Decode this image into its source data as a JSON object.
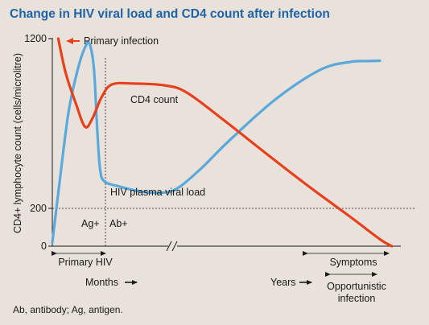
{
  "title": "Change in HIV viral load and CD4 count after infection",
  "footnote": "Ab, antibody; Ag, antigen.",
  "colors": {
    "title": "#1d63a8",
    "cd4": "#e8401c",
    "viral_load": "#5aa8dc",
    "background": "#e8e2da"
  },
  "chart_data": {
    "type": "line",
    "title": "Change in HIV viral load and CD4 count after infection",
    "ylabel": "CD4+ lymphocyte count (cells/microlitre)",
    "y_ticks": [
      "0",
      "200",
      "1200"
    ],
    "ylim": [
      0,
      1200
    ],
    "reference_line_y": 200,
    "x_axis_break": true,
    "x_annotations": {
      "primary_hiv": "Primary HIV",
      "months": "Months",
      "years": "Years",
      "symptoms": "Symptoms",
      "opportunistic_infection": "Opportunistic infection"
    },
    "annotations": {
      "primary_infection": "Primary infection",
      "ag": "Ag+",
      "ab": "Ab+"
    },
    "series": [
      {
        "name": "CD4 count",
        "color": "#e8401c",
        "values": [
          [
            0.04,
            1200
          ],
          [
            0.09,
            1000
          ],
          [
            0.16,
            820
          ],
          [
            0.22,
            690
          ],
          [
            0.27,
            740
          ],
          [
            0.33,
            860
          ],
          [
            0.4,
            935
          ],
          [
            0.55,
            940
          ],
          [
            0.75,
            930
          ],
          [
            0.9,
            890
          ],
          [
            1.15,
            730
          ],
          [
            1.4,
            560
          ],
          [
            1.7,
            360
          ],
          [
            2.0,
            170
          ],
          [
            2.2,
            40
          ],
          [
            2.28,
            0
          ]
        ]
      },
      {
        "name": "HIV plasma viral load",
        "color": "#5aa8dc",
        "values": [
          [
            0.0,
            20
          ],
          [
            0.05,
            380
          ],
          [
            0.11,
            780
          ],
          [
            0.17,
            1020
          ],
          [
            0.22,
            1150
          ],
          [
            0.25,
            1170
          ],
          [
            0.28,
            1020
          ],
          [
            0.3,
            700
          ],
          [
            0.32,
            450
          ],
          [
            0.35,
            375
          ],
          [
            0.45,
            345
          ],
          [
            0.6,
            315
          ],
          [
            0.75,
            310
          ],
          [
            0.85,
            340
          ],
          [
            1.0,
            450
          ],
          [
            1.2,
            620
          ],
          [
            1.5,
            850
          ],
          [
            1.8,
            1020
          ],
          [
            2.0,
            1065
          ],
          [
            2.12,
            1070
          ],
          [
            2.2,
            1072
          ]
        ]
      }
    ]
  }
}
